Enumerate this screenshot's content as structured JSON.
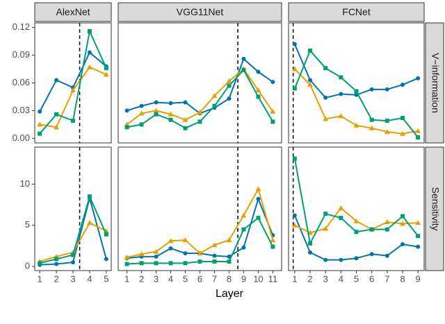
{
  "chart_data": [
    {
      "type": "line",
      "title": "AlexNet",
      "x": [
        1,
        2,
        3,
        4,
        5
      ],
      "xlim": [
        0.7,
        5.3
      ],
      "ylim": [
        -0.005,
        0.125
      ],
      "yticks": [
        {
          "value": 0,
          "label": "0.00"
        },
        0.03,
        0.06,
        0.09,
        0.12
      ],
      "vline": 3.4,
      "series": [
        {
          "color": "#0072b2",
          "marker": "circle",
          "values": [
            0.029,
            0.063,
            0.055,
            0.093,
            0.078
          ]
        },
        {
          "color": "#e69f00",
          "marker": "triangle",
          "values": [
            0.015,
            0.012,
            0.052,
            0.077,
            0.069
          ]
        },
        {
          "color": "#009e73",
          "marker": "square",
          "values": [
            0.005,
            0.026,
            0.019,
            0.116,
            0.076
          ]
        }
      ]
    },
    {
      "type": "line",
      "title": "VGG11Net",
      "x": [
        1,
        2,
        3,
        4,
        5,
        6,
        7,
        8,
        9,
        10,
        11
      ],
      "xlim": [
        0.4,
        11.6
      ],
      "ylim": [
        -0.005,
        0.125
      ],
      "vline": 8.6,
      "series": [
        {
          "color": "#0072b2",
          "marker": "circle",
          "values": [
            0.03,
            0.035,
            0.039,
            0.038,
            0.039,
            0.027,
            0.033,
            0.043,
            0.086,
            0.072,
            0.061
          ]
        },
        {
          "color": "#e69f00",
          "marker": "triangle",
          "values": [
            0.015,
            0.027,
            0.03,
            0.026,
            0.02,
            0.028,
            0.046,
            0.062,
            0.075,
            0.052,
            0.029
          ]
        },
        {
          "color": "#009e73",
          "marker": "square",
          "values": [
            0.012,
            0.015,
            0.026,
            0.02,
            0.011,
            0.018,
            0.035,
            0.057,
            0.074,
            0.045,
            0.018
          ]
        }
      ]
    },
    {
      "type": "line",
      "title": "FCNet",
      "row_label": "V−information",
      "x": [
        1,
        2,
        3,
        4,
        5,
        6,
        7,
        8,
        9
      ],
      "xlim": [
        0.6,
        9.4
      ],
      "ylim": [
        -0.005,
        0.125
      ],
      "vline": 0.9,
      "series": [
        {
          "color": "#0072b2",
          "marker": "circle",
          "values": [
            0.102,
            0.063,
            0.044,
            0.048,
            0.047,
            0.053,
            0.053,
            0.058,
            0.065
          ]
        },
        {
          "color": "#e69f00",
          "marker": "triangle",
          "values": [
            0.075,
            0.058,
            0.021,
            0.024,
            0.014,
            0.011,
            0.007,
            0.005,
            0.008
          ]
        },
        {
          "color": "#009e73",
          "marker": "square",
          "values": [
            0.054,
            0.095,
            0.076,
            0.066,
            0.051,
            0.02,
            0.019,
            0.022,
            0.001
          ]
        }
      ]
    },
    {
      "type": "line",
      "x": [
        1,
        2,
        3,
        4,
        5
      ],
      "xlim": [
        0.7,
        5.3
      ],
      "xticks": [
        1,
        2,
        3,
        4,
        5
      ],
      "ylim": [
        -0.5,
        14.5
      ],
      "yticks": [
        0,
        5,
        10
      ],
      "vline": 3.4,
      "series": [
        {
          "color": "#0072b2",
          "marker": "circle",
          "values": [
            0.2,
            0.3,
            0.5,
            8.3,
            0.9
          ]
        },
        {
          "color": "#e69f00",
          "marker": "triangle",
          "values": [
            0.6,
            1.2,
            1.7,
            5.3,
            4.3
          ]
        },
        {
          "color": "#009e73",
          "marker": "square",
          "values": [
            0.4,
            0.9,
            1.4,
            8.5,
            3.9
          ]
        }
      ]
    },
    {
      "type": "line",
      "xlabel": "Layer",
      "x": [
        1,
        2,
        3,
        4,
        5,
        6,
        7,
        8,
        9,
        10,
        11
      ],
      "xlim": [
        0.4,
        11.6
      ],
      "xticks": [
        1,
        2,
        3,
        4,
        5,
        6,
        7,
        8,
        9,
        10,
        11
      ],
      "ylim": [
        -0.5,
        14.5
      ],
      "vline": 8.6,
      "series": [
        {
          "color": "#0072b2",
          "marker": "circle",
          "values": [
            1.0,
            1.2,
            1.2,
            2.2,
            1.6,
            1.6,
            1.3,
            1.2,
            2.3,
            8.2,
            3.8
          ]
        },
        {
          "color": "#e69f00",
          "marker": "triangle",
          "values": [
            1.1,
            1.5,
            1.8,
            3.1,
            3.2,
            1.6,
            2.6,
            3.2,
            6.2,
            9.4,
            3.2
          ]
        },
        {
          "color": "#009e73",
          "marker": "square",
          "values": [
            0.3,
            0.4,
            0.4,
            0.4,
            0.4,
            0.6,
            0.6,
            0.6,
            4.5,
            5.9,
            2.4
          ]
        }
      ]
    },
    {
      "type": "line",
      "row_label": "Sensitivity",
      "x": [
        1,
        2,
        3,
        4,
        5,
        6,
        7,
        8,
        9
      ],
      "xlim": [
        0.6,
        9.4
      ],
      "xticks": [
        1,
        2,
        3,
        4,
        5,
        6,
        7,
        8,
        9
      ],
      "ylim": [
        -0.5,
        14.5
      ],
      "vline": 0.9,
      "series": [
        {
          "color": "#0072b2",
          "marker": "circle",
          "values": [
            6.2,
            1.7,
            0.8,
            0.8,
            1.0,
            1.5,
            1.3,
            2.7,
            2.4
          ]
        },
        {
          "color": "#e69f00",
          "marker": "triangle",
          "values": [
            5.0,
            4.1,
            4.6,
            7.1,
            5.5,
            4.5,
            5.4,
            5.2,
            5.3
          ]
        },
        {
          "color": "#009e73",
          "marker": "square",
          "values": [
            13.1,
            2.8,
            6.4,
            5.9,
            4.2,
            4.5,
            4.5,
            6.1,
            3.7
          ]
        }
      ]
    }
  ]
}
